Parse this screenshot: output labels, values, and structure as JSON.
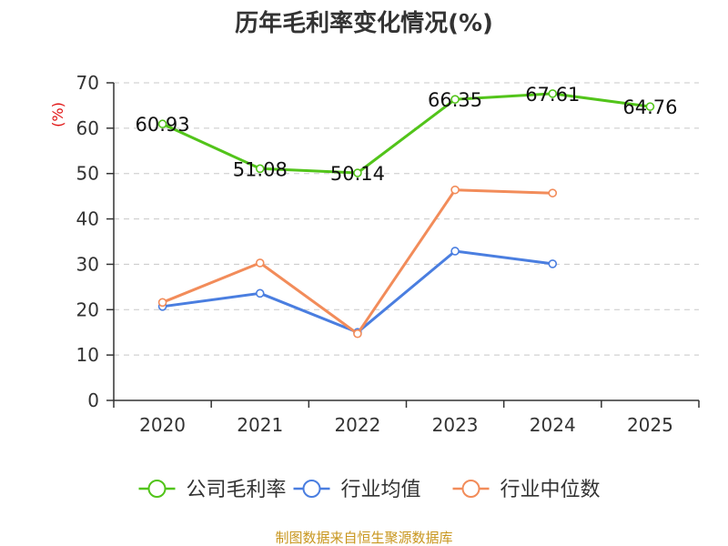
{
  "chart_data": {
    "type": "line",
    "title": "历年毛利率变化情况(%)",
    "ylabel": "(%)",
    "xlabel": "",
    "categories": [
      "2020",
      "2021",
      "2022",
      "2023",
      "2024",
      "2025"
    ],
    "yticks": [
      0,
      10,
      20,
      30,
      40,
      50,
      60,
      70
    ],
    "ylim": [
      0,
      70
    ],
    "grid": true,
    "legend": "bottom",
    "series": [
      {
        "name": "公司毛利率",
        "color": "#52c41a",
        "values": [
          60.93,
          51.08,
          50.14,
          66.35,
          67.61,
          64.76
        ],
        "labels": [
          "60.93",
          "51.08",
          "50.14",
          "66.35",
          "67.61",
          "64.76"
        ]
      },
      {
        "name": "行业均值",
        "color": "#4a7ee0",
        "values": [
          20.7,
          23.6,
          15.0,
          32.9,
          30.1,
          null
        ]
      },
      {
        "name": "行业中位数",
        "color": "#f28c5a",
        "values": [
          21.6,
          30.3,
          14.7,
          46.4,
          45.7,
          null
        ]
      }
    ]
  },
  "source": "制图数据来自恒生聚源数据库"
}
